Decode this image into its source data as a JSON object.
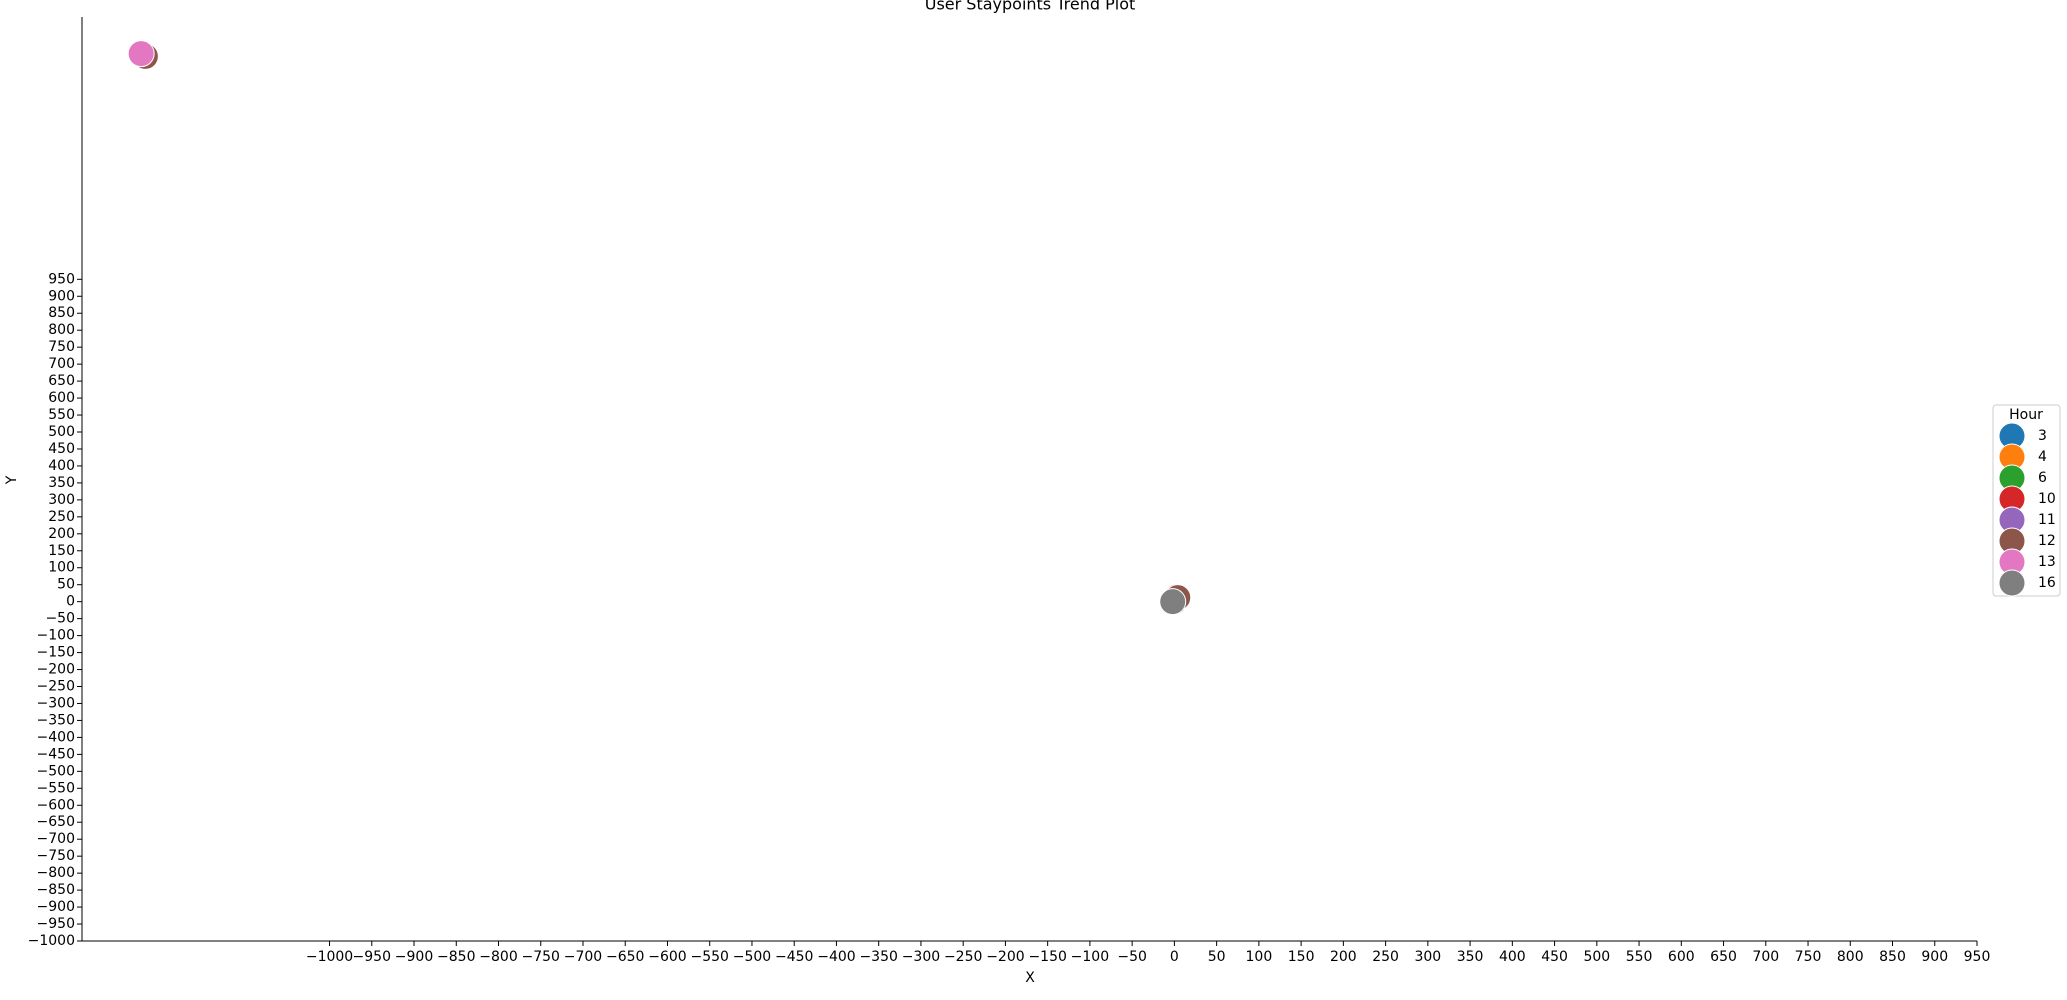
{
  "chart_data": {
    "type": "scatter",
    "title": "User Staypoints Trend Plot",
    "x_label": "X",
    "y_label": "Y",
    "legend_title": "Hour",
    "legend": "right",
    "xlim": [
      -1293,
      950
    ],
    "ylim": [
      -1000,
      1723
    ],
    "xticks": [
      {
        "value": -1000,
        "label": "−1000"
      },
      {
        "value": -950,
        "label": "−950"
      },
      {
        "value": -900,
        "label": "−900"
      },
      {
        "value": -850,
        "label": "−850"
      },
      {
        "value": -800,
        "label": "−800"
      },
      {
        "value": -750,
        "label": "−750"
      },
      {
        "value": -700,
        "label": "−700"
      },
      {
        "value": -650,
        "label": "−650"
      },
      {
        "value": -600,
        "label": "−600"
      },
      {
        "value": -550,
        "label": "−550"
      },
      {
        "value": -500,
        "label": "−500"
      },
      {
        "value": -450,
        "label": "−450"
      },
      {
        "value": -400,
        "label": "−400"
      },
      {
        "value": -350,
        "label": "−350"
      },
      {
        "value": -300,
        "label": "−300"
      },
      {
        "value": -250,
        "label": "−250"
      },
      {
        "value": -200,
        "label": "−200"
      },
      {
        "value": -150,
        "label": "−150"
      },
      {
        "value": -100,
        "label": "−100"
      },
      {
        "value": -50,
        "label": "−50"
      },
      0,
      50,
      100,
      150,
      200,
      250,
      300,
      350,
      400,
      450,
      500,
      550,
      600,
      650,
      700,
      750,
      800,
      850,
      900,
      950
    ],
    "yticks": [
      {
        "value": -1000,
        "label": "−1000"
      },
      {
        "value": -950,
        "label": "−950"
      },
      {
        "value": -900,
        "label": "−900"
      },
      {
        "value": -850,
        "label": "−850"
      },
      {
        "value": -800,
        "label": "−800"
      },
      {
        "value": -750,
        "label": "−750"
      },
      {
        "value": -700,
        "label": "−700"
      },
      {
        "value": -650,
        "label": "−650"
      },
      {
        "value": -600,
        "label": "−600"
      },
      {
        "value": -550,
        "label": "−550"
      },
      {
        "value": -500,
        "label": "−500"
      },
      {
        "value": -450,
        "label": "−450"
      },
      {
        "value": -400,
        "label": "−400"
      },
      {
        "value": -350,
        "label": "−350"
      },
      {
        "value": -300,
        "label": "−300"
      },
      {
        "value": -250,
        "label": "−250"
      },
      {
        "value": -200,
        "label": "−200"
      },
      {
        "value": -150,
        "label": "−150"
      },
      {
        "value": -100,
        "label": "−100"
      },
      {
        "value": -50,
        "label": "−50"
      },
      0,
      50,
      100,
      150,
      200,
      250,
      300,
      350,
      400,
      450,
      500,
      550,
      600,
      650,
      700,
      750,
      800,
      850,
      900,
      950
    ],
    "series": [
      {
        "name": "3",
        "color": "#1f77b4",
        "x": [
          0
        ],
        "y": [
          0
        ]
      },
      {
        "name": "4",
        "color": "#ff7f0e",
        "x": [
          0
        ],
        "y": [
          0
        ]
      },
      {
        "name": "6",
        "color": "#2ca02c",
        "x": [
          0
        ],
        "y": [
          0
        ]
      },
      {
        "name": "10",
        "color": "#d62728",
        "x": [
          3
        ],
        "y": [
          14
        ]
      },
      {
        "name": "11",
        "color": "#9467bd",
        "x": [
          0
        ],
        "y": [
          0
        ]
      },
      {
        "name": "12",
        "color": "#8c564b",
        "x": [
          -1218,
          4
        ],
        "y": [
          1607,
          12
        ]
      },
      {
        "name": "13",
        "color": "#e377c2",
        "x": [
          -1223
        ],
        "y": [
          1615
        ]
      },
      {
        "name": "16",
        "color": "#7f7f7f",
        "x": [
          -2
        ],
        "y": [
          0
        ]
      }
    ]
  }
}
